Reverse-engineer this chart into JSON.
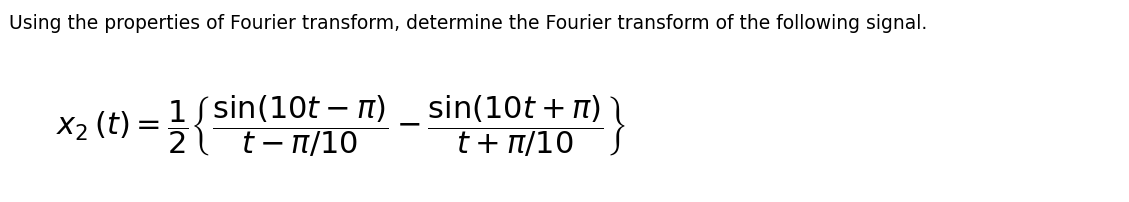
{
  "title_text": "Using the properties of Fourier transform, determine the Fourier transform of the following signal.",
  "title_fontsize": 13.5,
  "formula_fontsize": 22,
  "formula": "$x_2\\,(t) = \\dfrac{1}{2}\\left\\{\\dfrac{\\sin(10t-\\pi)}{t-\\pi/10} - \\dfrac{\\sin(10t+\\pi)}{t+\\pi/10}\\right\\}$",
  "background_color": "#ffffff",
  "text_color": "#000000",
  "fig_width": 11.29,
  "fig_height": 2.03,
  "dpi": 100
}
